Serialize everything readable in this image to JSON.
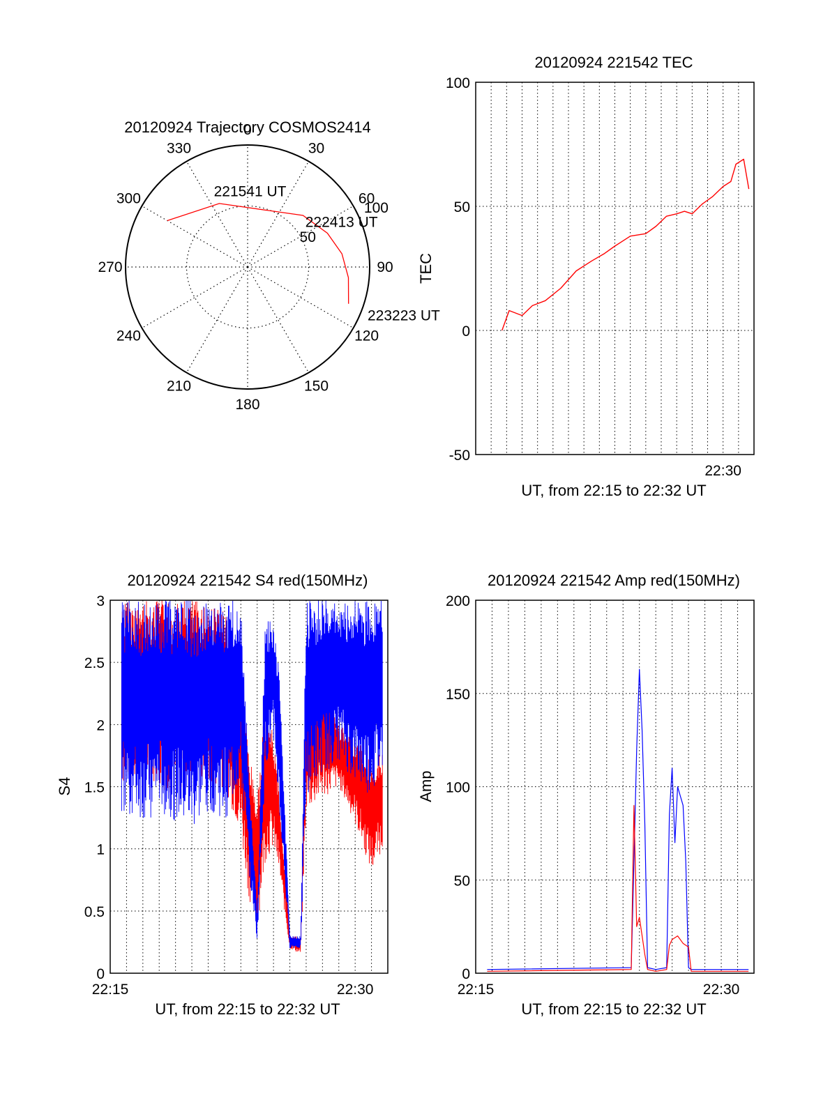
{
  "colors": {
    "red": "#ff0000",
    "blue": "#0000ff",
    "axis": "#000000",
    "grid": "#000000"
  },
  "chart_data": [
    {
      "id": "trajectory",
      "type": "polar",
      "title": "20120924 Trajectory COSMOS2414",
      "azimuth_labels": [
        "0",
        "30",
        "60",
        "90",
        "120",
        "150",
        "180",
        "210",
        "240",
        "270",
        "300",
        "330"
      ],
      "radial_ticks": [
        50,
        100
      ],
      "radial_tick_labels": [
        "50",
        "100"
      ],
      "r_max": 100,
      "track": {
        "series_color": "red",
        "points": [
          {
            "azimuth": 300,
            "elevation_offset": 76
          },
          {
            "azimuth": 336,
            "elevation_offset": 57
          },
          {
            "azimuth": 47,
            "elevation_offset": 62
          },
          {
            "azimuth": 67,
            "elevation_offset": 71
          },
          {
            "azimuth": 82,
            "elevation_offset": 78
          },
          {
            "azimuth": 96,
            "elevation_offset": 83
          },
          {
            "azimuth": 110,
            "elevation_offset": 88
          }
        ],
        "annotations": [
          {
            "text": "221541 UT",
            "azimuth": 336,
            "r": 68
          },
          {
            "text": "222413 UT",
            "azimuth": 52,
            "r": 60
          },
          {
            "text": "223223 UT",
            "azimuth": 112,
            "r": 106
          }
        ]
      }
    },
    {
      "id": "tec",
      "type": "line",
      "title": "20120924 221542 TEC",
      "xlabel": "UT, from 22:15 to 22:32 UT",
      "ylabel": "TEC",
      "xlim": [
        "22:14",
        "22:32"
      ],
      "ylim": [
        -50,
        100
      ],
      "yticks": [
        -50,
        0,
        50,
        100
      ],
      "xticks": [
        {
          "t": "22:30",
          "label": "22:30"
        }
      ],
      "grid": true,
      "series": [
        {
          "color": "red",
          "x": [
            "22:15:42",
            "22:16:10",
            "22:17:00",
            "22:17:40",
            "22:18:30",
            "22:19:30",
            "22:20:30",
            "22:21:30",
            "22:22:20",
            "22:23:00",
            "22:24:00",
            "22:25:00",
            "22:25:40",
            "22:26:20",
            "22:27:00",
            "22:27:30",
            "22:28:00",
            "22:28:40",
            "22:29:20",
            "22:30:00",
            "22:30:30",
            "22:30:50",
            "22:31:20",
            "22:31:40"
          ],
          "y": [
            0,
            8,
            6,
            10,
            12,
            17,
            24,
            28,
            31,
            34,
            38,
            39,
            42,
            46,
            47,
            48,
            47,
            51,
            54,
            58,
            60,
            67,
            69,
            57
          ]
        }
      ]
    },
    {
      "id": "s4",
      "type": "line",
      "title": "20120924 221542 S4 red(150MHz)",
      "xlabel": "UT, from 22:15 to 22:32 UT",
      "ylabel": "S4",
      "xlim": [
        "22:15",
        "22:32"
      ],
      "ylim": [
        0,
        3
      ],
      "yticks": [
        0,
        0.5,
        1,
        1.5,
        2,
        2.5,
        3
      ],
      "ytick_labels": [
        "0",
        "0.5",
        "1",
        "1.5",
        "2",
        "2.5",
        "3"
      ],
      "xticks": [
        {
          "t": "22:15",
          "label": "22:15"
        },
        {
          "t": "22:30",
          "label": "22:30"
        }
      ],
      "grid": true,
      "series": [
        {
          "color": "red",
          "x": [
            "22:15:42",
            "22:17:00",
            "22:18:00",
            "22:19:00",
            "22:20:00",
            "22:21:00",
            "22:22:00",
            "22:23:00",
            "22:23:30",
            "22:24:00",
            "22:24:30",
            "22:25:00",
            "22:25:20",
            "22:26:00",
            "22:26:40",
            "22:27:00",
            "22:28:00",
            "22:29:00",
            "22:30:00",
            "22:31:00",
            "22:31:40"
          ],
          "low": [
            1.5,
            1.6,
            1.5,
            1.4,
            1.6,
            1.5,
            1.5,
            1.1,
            0.6,
            0.35,
            0.9,
            1.0,
            0.8,
            0.2,
            0.15,
            1.3,
            1.4,
            1.5,
            1.2,
            0.8,
            1.0
          ],
          "high": [
            3.0,
            3.0,
            3.0,
            3.0,
            3.0,
            3.0,
            2.9,
            2.5,
            1.8,
            1.4,
            2.2,
            1.9,
            1.5,
            0.3,
            0.3,
            2.3,
            2.4,
            2.0,
            1.9,
            1.7,
            1.8
          ]
        },
        {
          "color": "blue",
          "x": [
            "22:15:42",
            "22:17:00",
            "22:18:00",
            "22:19:00",
            "22:20:00",
            "22:21:00",
            "22:22:00",
            "22:23:00",
            "22:23:30",
            "22:24:00",
            "22:24:30",
            "22:25:00",
            "22:25:20",
            "22:26:00",
            "22:26:40",
            "22:27:00",
            "22:28:00",
            "22:29:00",
            "22:30:00",
            "22:31:00",
            "22:31:40"
          ],
          "low": [
            1.3,
            1.2,
            1.3,
            1.2,
            1.1,
            1.3,
            1.2,
            1.5,
            0.8,
            0.25,
            1.6,
            1.9,
            1.3,
            0.2,
            0.2,
            1.4,
            1.6,
            1.7,
            1.5,
            1.4,
            1.6
          ],
          "high": [
            3.0,
            3.0,
            3.0,
            3.0,
            3.0,
            3.0,
            3.0,
            3.0,
            1.6,
            0.5,
            2.9,
            2.8,
            2.5,
            0.3,
            0.3,
            3.0,
            3.0,
            3.0,
            3.0,
            3.0,
            3.0
          ]
        }
      ]
    },
    {
      "id": "amp",
      "type": "line",
      "title": "20120924 221542 Amp red(150MHz)",
      "xlabel": "UT, from 22:15 to 22:32 UT",
      "ylabel": "Amp",
      "xlim": [
        "22:15",
        "22:32"
      ],
      "ylim": [
        0,
        200
      ],
      "yticks": [
        0,
        50,
        100,
        150,
        200
      ],
      "xticks": [
        {
          "t": "22:15",
          "label": "22:15"
        },
        {
          "t": "22:30",
          "label": "22:30"
        }
      ],
      "grid": true,
      "series": [
        {
          "color": "blue",
          "x": [
            "22:15:42",
            "22:24:30",
            "22:24:40",
            "22:24:50",
            "22:25:00",
            "22:25:10",
            "22:25:20",
            "22:25:30",
            "22:26:00",
            "22:26:40",
            "22:26:50",
            "22:27:00",
            "22:27:10",
            "22:27:20",
            "22:27:30",
            "22:27:40",
            "22:27:50",
            "22:28:00",
            "22:28:10",
            "22:31:40"
          ],
          "y": [
            2,
            3,
            60,
            120,
            163,
            130,
            80,
            3,
            2,
            3,
            85,
            110,
            70,
            100,
            95,
            90,
            60,
            3,
            2,
            2
          ]
        },
        {
          "color": "red",
          "x": [
            "22:15:42",
            "22:24:30",
            "22:24:40",
            "22:24:50",
            "22:25:00",
            "22:25:10",
            "22:25:20",
            "22:25:30",
            "22:26:00",
            "22:26:40",
            "22:26:50",
            "22:27:00",
            "22:27:20",
            "22:27:40",
            "22:28:00",
            "22:28:10",
            "22:31:40"
          ],
          "y": [
            1,
            2,
            90,
            25,
            30,
            20,
            10,
            2,
            1,
            2,
            15,
            18,
            20,
            16,
            14,
            1,
            1
          ]
        }
      ]
    }
  ]
}
